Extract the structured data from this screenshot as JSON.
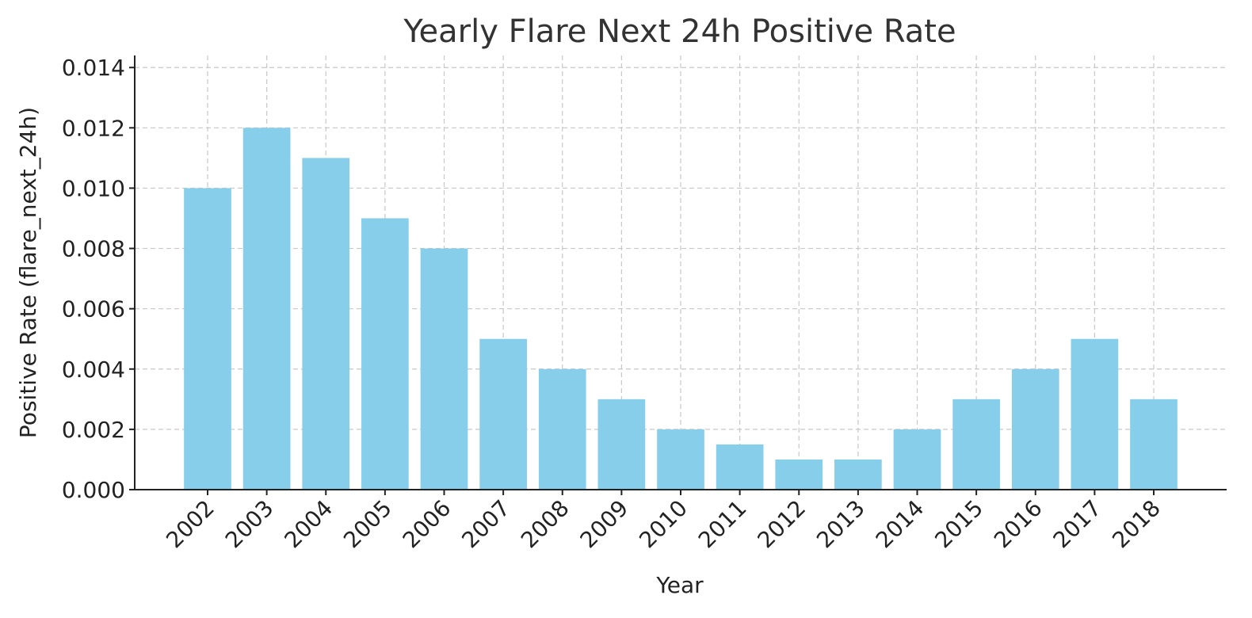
{
  "chart_data": {
    "type": "bar",
    "title": "Yearly Flare Next 24h Positive Rate",
    "xlabel": "Year",
    "ylabel": "Positive Rate (flare_next_24h)",
    "categories": [
      "2002",
      "2003",
      "2004",
      "2005",
      "2006",
      "2007",
      "2008",
      "2009",
      "2010",
      "2011",
      "2012",
      "2013",
      "2014",
      "2015",
      "2016",
      "2017",
      "2018"
    ],
    "values": [
      0.01,
      0.012,
      0.011,
      0.009,
      0.008,
      0.005,
      0.004,
      0.003,
      0.002,
      0.0015,
      0.001,
      0.001,
      0.002,
      0.003,
      0.004,
      0.005,
      0.003
    ],
    "ylim": [
      0,
      0.0144
    ],
    "yticks": [
      "0.000",
      "0.002",
      "0.004",
      "0.006",
      "0.008",
      "0.010",
      "0.012",
      "0.014"
    ],
    "bar_color": "#87ceeb",
    "grid": true,
    "x_tick_rotation": "45 degrees"
  }
}
